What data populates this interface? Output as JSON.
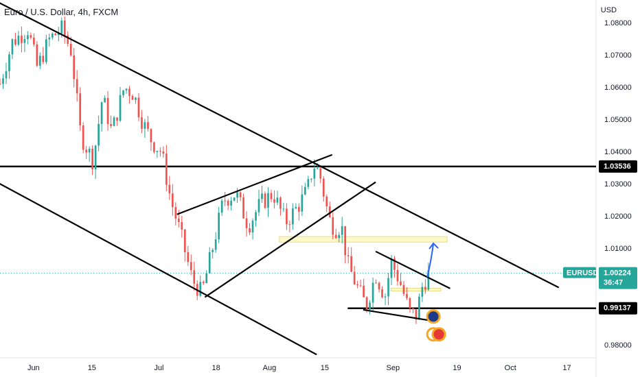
{
  "chart_title": "Euro / U.S. Dollar, 4h, FXCM",
  "currency": "USD",
  "colors": {
    "up": "#26a69a",
    "down": "#ef5350",
    "trendline": "#000000",
    "zone_fill": "#fff9c4",
    "zone_stroke": "#e6d87a",
    "projection": "#2962ff",
    "price_label_bg": "#26a69a",
    "level_label_bg": "#000000",
    "price_line": "#26a69a"
  },
  "chart_data": {
    "type": "candlestick",
    "symbol": "EURUSD",
    "timeframe": "4h",
    "ylim": [
      0.976,
      1.087
    ],
    "y_ticks": [
      "1.08000",
      "1.07000",
      "1.06000",
      "1.05000",
      "1.04000",
      "1.03000",
      "1.02000",
      "1.01000",
      "0.98000"
    ],
    "x_ticks": [
      "Jun",
      "15",
      "Jul",
      "18",
      "Aug",
      "15",
      "Sep",
      "19",
      "Oct",
      "17"
    ],
    "horizontal_levels": [
      {
        "label": "1.03536",
        "value": 1.03536
      },
      {
        "label": "0.99137",
        "value": 0.99137
      }
    ],
    "last_price": {
      "symbol": "EURUSD",
      "value": "1.00224",
      "countdown": "36:47"
    },
    "price_path": [
      {
        "t": 0.0,
        "v": 1.061
      },
      {
        "t": 2.0,
        "v": 1.074
      },
      {
        "t": 4.5,
        "v": 1.078
      },
      {
        "t": 6.0,
        "v": 1.066
      },
      {
        "t": 8.0,
        "v": 1.075
      },
      {
        "t": 10.0,
        "v": 1.078
      },
      {
        "t": 11.5,
        "v": 1.071
      },
      {
        "t": 13.0,
        "v": 1.045
      },
      {
        "t": 15.0,
        "v": 1.037
      },
      {
        "t": 16.5,
        "v": 1.057
      },
      {
        "t": 18.0,
        "v": 1.046
      },
      {
        "t": 20.0,
        "v": 1.06
      },
      {
        "t": 21.5,
        "v": 1.058
      },
      {
        "t": 23.0,
        "v": 1.049
      },
      {
        "t": 24.5,
        "v": 1.043
      },
      {
        "t": 26.0,
        "v": 1.04
      },
      {
        "t": 27.5,
        "v": 1.025
      },
      {
        "t": 29.0,
        "v": 1.015
      },
      {
        "t": 31.0,
        "v": 1.0
      },
      {
        "t": 32.5,
        "v": 0.996
      },
      {
        "t": 34.0,
        "v": 1.008
      },
      {
        "t": 36.0,
        "v": 1.025
      },
      {
        "t": 38.0,
        "v": 1.027
      },
      {
        "t": 40.0,
        "v": 1.017
      },
      {
        "t": 42.0,
        "v": 1.024
      },
      {
        "t": 44.0,
        "v": 1.027
      },
      {
        "t": 46.0,
        "v": 1.018
      },
      {
        "t": 48.0,
        "v": 1.023
      },
      {
        "t": 49.5,
        "v": 1.028
      },
      {
        "t": 50.5,
        "v": 1.036
      },
      {
        "t": 51.5,
        "v": 1.033
      },
      {
        "t": 53.0,
        "v": 1.019
      },
      {
        "t": 54.0,
        "v": 1.016
      },
      {
        "t": 55.0,
        "v": 1.017
      },
      {
        "t": 56.0,
        "v": 1.005
      },
      {
        "t": 57.5,
        "v": 0.998
      },
      {
        "t": 59.0,
        "v": 0.992
      },
      {
        "t": 60.5,
        "v": 1.002
      },
      {
        "t": 62.0,
        "v": 0.995
      },
      {
        "t": 63.0,
        "v": 1.006
      },
      {
        "t": 64.5,
        "v": 0.999
      },
      {
        "t": 66.0,
        "v": 0.99
      },
      {
        "t": 67.0,
        "v": 0.989
      },
      {
        "t": 68.0,
        "v": 0.998
      },
      {
        "t": 69.0,
        "v": 1.002
      }
    ],
    "n_candles": 140,
    "trendlines": [
      {
        "name": "channel-upper",
        "from": {
          "t": -1.0,
          "v": 1.087
        },
        "to": {
          "t": 90.0,
          "v": 0.9978
        }
      },
      {
        "name": "channel-lower",
        "from": {
          "t": -1.0,
          "v": 1.031
        },
        "to": {
          "t": 51.0,
          "v": 0.977
        }
      },
      {
        "name": "rising-upper",
        "from": {
          "t": 28.5,
          "v": 1.0205
        },
        "to": {
          "t": 53.5,
          "v": 1.039
        }
      },
      {
        "name": "rising-lower",
        "from": {
          "t": 33.0,
          "v": 0.9948
        },
        "to": {
          "t": 60.5,
          "v": 1.0305
        }
      },
      {
        "name": "wedge-upper",
        "from": {
          "t": 60.5,
          "v": 1.009
        },
        "to": {
          "t": 72.5,
          "v": 0.9975
        }
      },
      {
        "name": "wedge-lower",
        "from": {
          "t": 58.5,
          "v": 0.9909
        },
        "to": {
          "t": 70.5,
          "v": 0.9872
        }
      }
    ],
    "zones": [
      {
        "name": "supply-zone-top",
        "t_start": 45.0,
        "t_end": 72.0,
        "v_low": 1.0119,
        "v_high": 1.0136
      },
      {
        "name": "zone-small",
        "t_start": 63.0,
        "t_end": 71.0,
        "v_low": 0.9967,
        "v_high": 0.9976
      }
    ],
    "projection_arrow": {
      "from": {
        "t": 68.8,
        "v": 1.001
      },
      "to": {
        "t": 69.8,
        "v": 1.0115
      }
    },
    "x_tick_positions_t": [
      5.4,
      14.8,
      25.6,
      34.8,
      43.4,
      52.3,
      63.3,
      73.6,
      82.2,
      91.3
    ],
    "x_range_t": [
      0,
      96
    ]
  }
}
